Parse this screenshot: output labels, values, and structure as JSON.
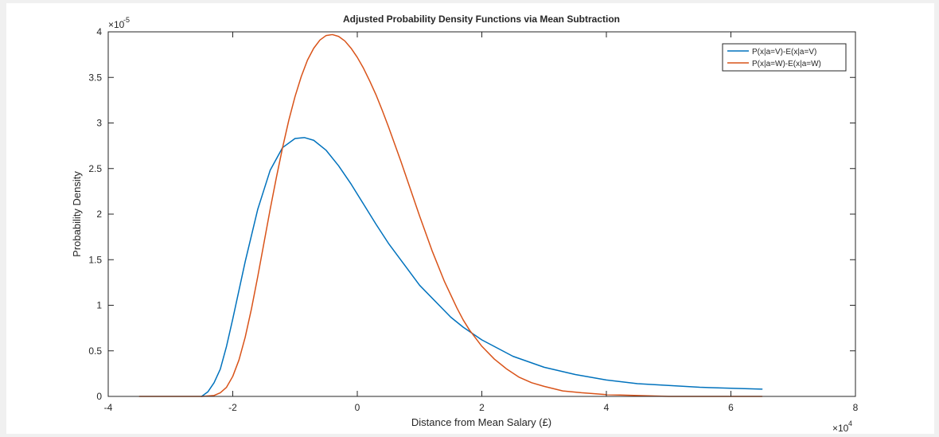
{
  "chart_data": {
    "type": "line",
    "title": "Adjusted Probability Density Functions via Mean Subtraction",
    "xlabel": "Distance from Mean Salary (£)",
    "ylabel": "Probability Density",
    "xlim": [
      -40000,
      80000
    ],
    "ylim": [
      0,
      4e-05
    ],
    "x_ticks": [
      -40000,
      -20000,
      0,
      20000,
      40000,
      60000,
      80000
    ],
    "x_tick_labels": [
      "-4",
      "-2",
      "0",
      "2",
      "4",
      "6",
      "8"
    ],
    "x_exponent": "×10",
    "x_exponent_power": "4",
    "y_ticks": [
      0,
      5e-06,
      1e-05,
      1.5e-05,
      2e-05,
      2.5e-05,
      3e-05,
      3.5e-05,
      4e-05
    ],
    "y_tick_labels": [
      "0",
      "0.5",
      "1",
      "1.5",
      "2",
      "2.5",
      "3",
      "3.5",
      "4"
    ],
    "y_exponent": "×10",
    "y_exponent_power": "-5",
    "grid": false,
    "legend_position": "top-right",
    "colors": {
      "series_1": "#0072bd",
      "series_2": "#d95319"
    },
    "series": [
      {
        "name": "P(x|a=V)-E(x|a=V)",
        "color": "#0072bd",
        "x": [
          -25000,
          -24000,
          -23000,
          -22000,
          -21000,
          -20000,
          -18000,
          -16000,
          -14000,
          -12000,
          -10000,
          -8500,
          -7000,
          -5000,
          -3000,
          -1000,
          1000,
          3000,
          5000,
          10000,
          15000,
          17000,
          20000,
          25000,
          30000,
          35000,
          40000,
          45000,
          50000,
          55000,
          60000,
          65000
        ],
        "y": [
          0,
          5e-07,
          1.5e-06,
          3e-06,
          5.5e-06,
          8.5e-06,
          1.48e-05,
          2.05e-05,
          2.48e-05,
          2.73e-05,
          2.83e-05,
          2.84e-05,
          2.81e-05,
          2.7e-05,
          2.53e-05,
          2.33e-05,
          2.11e-05,
          1.89e-05,
          1.68e-05,
          1.22e-05,
          8.7e-06,
          7.6e-06,
          6.2e-06,
          4.4e-06,
          3.2e-06,
          2.4e-06,
          1.8e-06,
          1.4e-06,
          1.2e-06,
          1e-06,
          9e-07,
          8e-07
        ]
      },
      {
        "name": "P(x|a=W)-E(x|a=W)",
        "color": "#d95319",
        "x": [
          -35000,
          -30000,
          -25000,
          -23000,
          -22000,
          -21000,
          -20000,
          -19000,
          -18000,
          -17000,
          -16000,
          -15000,
          -14000,
          -13000,
          -12000,
          -11000,
          -10000,
          -9000,
          -8000,
          -7000,
          -6000,
          -5000,
          -4000,
          -3000,
          -2000,
          -1000,
          0,
          1000,
          2000,
          3000,
          4000,
          5000,
          6000,
          7000,
          8000,
          9000,
          10000,
          12000,
          14000,
          16000,
          17000,
          18000,
          20000,
          22000,
          24000,
          26000,
          28000,
          30000,
          33000,
          36000,
          40000,
          45000,
          50000,
          55000,
          60000,
          65000
        ],
        "y": [
          0,
          0,
          0,
          1e-07,
          4e-07,
          1e-06,
          2.2e-06,
          4e-06,
          6.5e-06,
          9.6e-06,
          1.31e-05,
          1.68e-05,
          2.05e-05,
          2.4e-05,
          2.73e-05,
          3.03e-05,
          3.29e-05,
          3.51e-05,
          3.69e-05,
          3.82e-05,
          3.91e-05,
          3.96e-05,
          3.97e-05,
          3.95e-05,
          3.9e-05,
          3.82e-05,
          3.72e-05,
          3.6e-05,
          3.46e-05,
          3.31e-05,
          3.14e-05,
          2.96e-05,
          2.77e-05,
          2.58e-05,
          2.38e-05,
          2.18e-05,
          1.98e-05,
          1.6e-05,
          1.26e-05,
          9.7e-06,
          8.4e-06,
          7.3e-06,
          5.5e-06,
          4.1e-06,
          3e-06,
          2.1e-06,
          1.5e-06,
          1.1e-06,
          6e-07,
          4e-07,
          2e-07,
          1e-07,
          0,
          0,
          0,
          0
        ]
      }
    ]
  }
}
